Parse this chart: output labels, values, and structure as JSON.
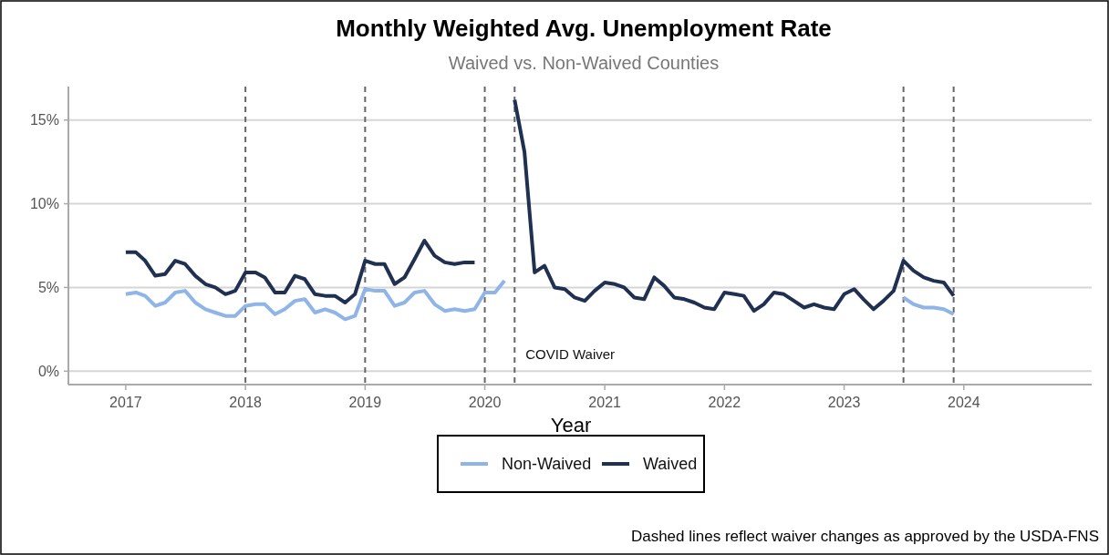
{
  "chart_data": {
    "type": "line",
    "title": "Monthly Weighted Avg. Unemployment Rate",
    "subtitle": "Waived vs. Non-Waived Counties",
    "xlabel": "Year",
    "x": [
      "2017-01",
      "2017-02",
      "2017-03",
      "2017-04",
      "2017-05",
      "2017-06",
      "2017-07",
      "2017-08",
      "2017-09",
      "2017-10",
      "2017-11",
      "2017-12",
      "2018-01",
      "2018-02",
      "2018-03",
      "2018-04",
      "2018-05",
      "2018-06",
      "2018-07",
      "2018-08",
      "2018-09",
      "2018-10",
      "2018-11",
      "2018-12",
      "2019-01",
      "2019-02",
      "2019-03",
      "2019-04",
      "2019-05",
      "2019-06",
      "2019-07",
      "2019-08",
      "2019-09",
      "2019-10",
      "2019-11",
      "2019-12",
      "2020-01",
      "2020-02",
      "2020-03",
      "2020-04",
      "2020-05",
      "2020-06",
      "2020-07",
      "2020-08",
      "2020-09",
      "2020-10",
      "2020-11",
      "2020-12",
      "2021-01",
      "2021-02",
      "2021-03",
      "2021-04",
      "2021-05",
      "2021-06",
      "2021-07",
      "2021-08",
      "2021-09",
      "2021-10",
      "2021-11",
      "2021-12",
      "2022-01",
      "2022-02",
      "2022-03",
      "2022-04",
      "2022-05",
      "2022-06",
      "2022-07",
      "2022-08",
      "2022-09",
      "2022-10",
      "2022-11",
      "2022-12",
      "2023-01",
      "2023-02",
      "2023-03",
      "2023-04",
      "2023-05",
      "2023-06",
      "2023-07",
      "2023-08",
      "2023-09",
      "2023-10",
      "2023-11",
      "2023-12"
    ],
    "series": [
      {
        "name": "Non-Waived",
        "color": "#8fb4e8",
        "values": [
          4.6,
          4.7,
          4.5,
          3.9,
          4.1,
          4.7,
          4.8,
          4.1,
          3.7,
          3.5,
          3.3,
          3.3,
          3.9,
          4.0,
          4.0,
          3.4,
          3.7,
          4.2,
          4.3,
          3.5,
          3.7,
          3.5,
          3.1,
          3.3,
          4.9,
          4.8,
          4.8,
          3.9,
          4.1,
          4.7,
          4.8,
          4.0,
          3.6,
          3.7,
          3.6,
          3.7,
          4.7,
          4.7,
          5.4,
          null,
          null,
          null,
          null,
          null,
          null,
          null,
          null,
          null,
          null,
          null,
          null,
          null,
          null,
          null,
          null,
          null,
          null,
          null,
          null,
          null,
          null,
          null,
          null,
          null,
          null,
          null,
          null,
          null,
          null,
          null,
          null,
          null,
          null,
          null,
          null,
          null,
          null,
          null,
          4.4,
          4.0,
          3.8,
          3.8,
          3.7,
          3.4
        ]
      },
      {
        "name": "Waived",
        "color": "#1f3050",
        "values": [
          7.1,
          7.1,
          6.6,
          5.7,
          5.8,
          6.6,
          6.4,
          5.7,
          5.2,
          5.0,
          4.6,
          4.8,
          5.9,
          5.9,
          5.6,
          4.7,
          4.7,
          5.7,
          5.5,
          4.6,
          4.5,
          4.5,
          4.1,
          4.6,
          6.6,
          6.4,
          6.4,
          5.2,
          5.6,
          6.7,
          7.8,
          6.9,
          6.5,
          6.4,
          6.5,
          6.5,
          null,
          null,
          null,
          16.2,
          13.1,
          5.9,
          6.3,
          5.0,
          4.9,
          4.4,
          4.2,
          4.8,
          5.3,
          5.2,
          5.0,
          4.4,
          4.3,
          5.6,
          5.1,
          4.4,
          4.3,
          4.1,
          3.8,
          3.7,
          4.7,
          4.6,
          4.5,
          3.6,
          4.0,
          4.7,
          4.6,
          4.2,
          3.8,
          4.0,
          3.8,
          3.7,
          4.6,
          4.9,
          4.3,
          3.7,
          4.2,
          4.8,
          6.6,
          6.0,
          5.6,
          5.4,
          5.3,
          4.5
        ]
      }
    ],
    "xlim": [
      "2016-07-10",
      "2025-01-25"
    ],
    "xticks": [
      {
        "value": "2017-01",
        "label": "2017"
      },
      {
        "value": "2018-01",
        "label": "2018"
      },
      {
        "value": "2019-01",
        "label": "2019"
      },
      {
        "value": "2020-01",
        "label": "2020"
      },
      {
        "value": "2021-01",
        "label": "2021"
      },
      {
        "value": "2022-01",
        "label": "2022"
      },
      {
        "value": "2023-01",
        "label": "2023"
      },
      {
        "value": "2024-01",
        "label": "2024"
      }
    ],
    "ylim": [
      -0.8,
      17
    ],
    "yticks": [
      {
        "value": 0,
        "label": "0%"
      },
      {
        "value": 5,
        "label": "5%"
      },
      {
        "value": 10,
        "label": "10%"
      },
      {
        "value": 15,
        "label": "15%"
      }
    ],
    "ref_lines": [
      {
        "axis": "x",
        "value": "2018-01",
        "line_style": "dashed",
        "color": "#666666"
      },
      {
        "axis": "x",
        "value": "2019-01",
        "line_style": "dashed",
        "color": "#666666"
      },
      {
        "axis": "x",
        "value": "2020-01",
        "line_style": "dashed",
        "color": "#666666"
      },
      {
        "axis": "x",
        "value": "2020-04",
        "label": "COVID Waiver",
        "line_style": "dashed",
        "color": "#666666"
      },
      {
        "axis": "x",
        "value": "2023-07",
        "line_style": "dashed",
        "color": "#666666"
      },
      {
        "axis": "x",
        "value": "2023-12",
        "line_style": "dashed",
        "color": "#666666"
      }
    ],
    "grid": "y",
    "legend": "bottom",
    "line_style": "solid",
    "marker": "none",
    "annotations": [
      "Dashed lines reflect waiver changes as approved by the USDA-FNS"
    ]
  }
}
